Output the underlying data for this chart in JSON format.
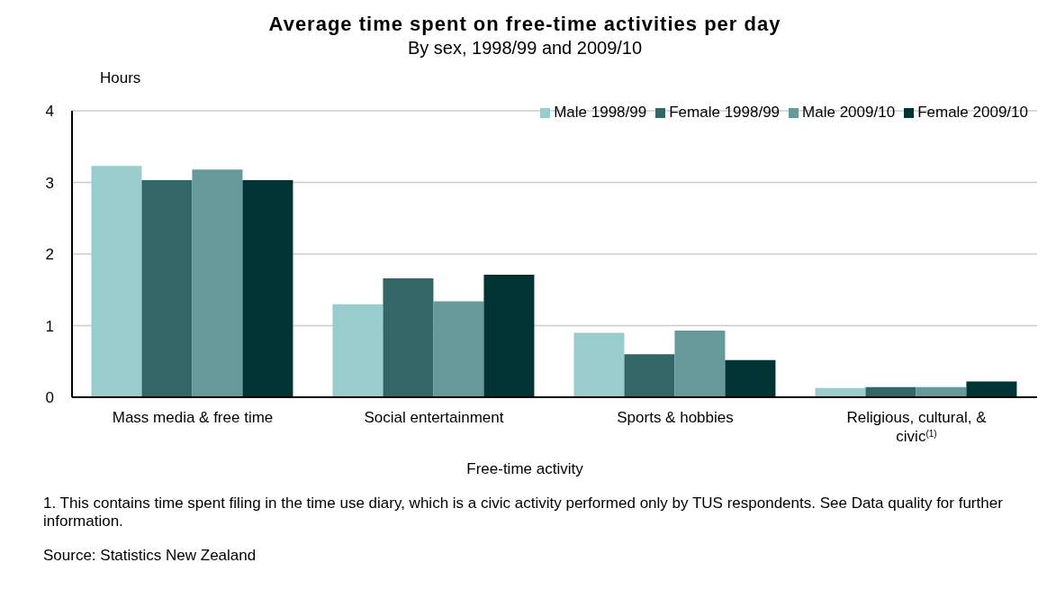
{
  "chart_data": {
    "type": "bar",
    "title": "Average time spent on free-time activities per day",
    "subtitle": "By sex, 1998/99 and 2009/10",
    "ylabel": "Hours",
    "xlabel": "Free-time activity",
    "categories": [
      "Mass media & free time",
      "Social entertainment",
      "Sports & hobbies",
      "Religious, cultural, & civic$^{(1)}$"
    ],
    "series": [
      {
        "name": "Male 1998/99",
        "color": "#99cccc",
        "values": [
          3.23,
          1.3,
          0.9,
          0.13
        ]
      },
      {
        "name": "Female 1998/99",
        "color": "#336666",
        "values": [
          3.03,
          1.66,
          0.6,
          0.14
        ]
      },
      {
        "name": "Male 2009/10",
        "color": "#669999",
        "values": [
          3.18,
          1.34,
          0.93,
          0.14
        ]
      },
      {
        "name": "Female 2009/10",
        "color": "#003333",
        "values": [
          3.03,
          1.71,
          0.52,
          0.22
        ]
      }
    ],
    "ylim": [
      0,
      4
    ],
    "yticks": [
      0,
      1,
      2,
      3,
      4
    ],
    "grid": "y",
    "legend": "top right",
    "annotations": [
      "1. This contains time spent filing in the time use diary, which is a civic activity performed only by TUS respondents. See Data quality for further information.",
      "Source: Statistics New Zealand"
    ]
  }
}
